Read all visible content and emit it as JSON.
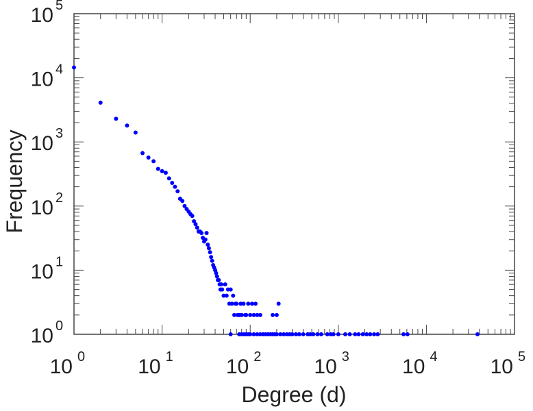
{
  "chart_data": {
    "type": "scatter",
    "title": "",
    "xlabel": "Degree (d)",
    "ylabel": "Frequency",
    "xscale": "log",
    "yscale": "log",
    "xlim": [
      1,
      100000
    ],
    "ylim": [
      1,
      100000
    ],
    "x_ticks": [
      {
        "base": "10",
        "exp": "0"
      },
      {
        "base": "10",
        "exp": "1"
      },
      {
        "base": "10",
        "exp": "2"
      },
      {
        "base": "10",
        "exp": "3"
      },
      {
        "base": "10",
        "exp": "4"
      },
      {
        "base": "10",
        "exp": "5"
      }
    ],
    "y_ticks": [
      {
        "base": "10",
        "exp": "0"
      },
      {
        "base": "10",
        "exp": "1"
      },
      {
        "base": "10",
        "exp": "2"
      },
      {
        "base": "10",
        "exp": "3"
      },
      {
        "base": "10",
        "exp": "4"
      },
      {
        "base": "10",
        "exp": "5"
      }
    ],
    "grid": false,
    "marker_color": "#0000ff",
    "points": [
      [
        1,
        14500
      ],
      [
        2,
        4100
      ],
      [
        3,
        2300
      ],
      [
        4,
        1800
      ],
      [
        5,
        1400
      ],
      [
        6,
        670
      ],
      [
        7,
        570
      ],
      [
        8,
        500
      ],
      [
        9,
        380
      ],
      [
        10,
        350
      ],
      [
        11,
        330
      ],
      [
        12,
        270
      ],
      [
        13,
        230
      ],
      [
        14,
        200
      ],
      [
        15,
        170
      ],
      [
        16,
        130
      ],
      [
        17,
        120
      ],
      [
        18,
        100
      ],
      [
        19,
        90
      ],
      [
        20,
        82
      ],
      [
        21,
        75
      ],
      [
        22,
        70
      ],
      [
        23,
        58
      ],
      [
        24,
        52
      ],
      [
        25,
        46
      ],
      [
        26,
        40
      ],
      [
        27,
        40
      ],
      [
        28,
        38
      ],
      [
        29,
        32
      ],
      [
        30,
        28
      ],
      [
        31,
        30
      ],
      [
        32,
        38
      ],
      [
        33,
        25
      ],
      [
        34,
        22
      ],
      [
        35,
        19
      ],
      [
        36,
        16
      ],
      [
        37,
        14
      ],
      [
        38,
        12
      ],
      [
        39,
        11
      ],
      [
        40,
        10
      ],
      [
        41,
        9
      ],
      [
        42,
        8
      ],
      [
        43,
        7
      ],
      [
        44,
        7
      ],
      [
        45,
        6
      ],
      [
        46,
        5
      ],
      [
        47,
        6
      ],
      [
        48,
        5
      ],
      [
        50,
        4
      ],
      [
        52,
        6
      ],
      [
        54,
        4
      ],
      [
        56,
        5
      ],
      [
        58,
        3
      ],
      [
        60,
        5
      ],
      [
        62,
        3
      ],
      [
        64,
        4
      ],
      [
        66,
        2
      ],
      [
        68,
        3
      ],
      [
        70,
        3
      ],
      [
        72,
        2
      ],
      [
        74,
        2
      ],
      [
        76,
        2
      ],
      [
        78,
        3
      ],
      [
        80,
        2
      ],
      [
        84,
        3
      ],
      [
        88,
        2
      ],
      [
        90,
        2
      ],
      [
        95,
        3
      ],
      [
        100,
        2
      ],
      [
        105,
        3
      ],
      [
        110,
        2
      ],
      [
        115,
        3
      ],
      [
        120,
        2
      ],
      [
        130,
        2
      ],
      [
        180,
        2
      ],
      [
        200,
        2
      ],
      [
        210,
        3
      ],
      [
        60,
        1
      ],
      [
        75,
        1
      ],
      [
        80,
        1
      ],
      [
        85,
        1
      ],
      [
        90,
        1
      ],
      [
        95,
        1
      ],
      [
        100,
        1
      ],
      [
        110,
        1
      ],
      [
        120,
        1
      ],
      [
        130,
        1
      ],
      [
        140,
        1
      ],
      [
        150,
        1
      ],
      [
        160,
        1
      ],
      [
        170,
        1
      ],
      [
        180,
        1
      ],
      [
        190,
        1
      ],
      [
        200,
        1
      ],
      [
        220,
        1
      ],
      [
        240,
        1
      ],
      [
        260,
        1
      ],
      [
        280,
        1
      ],
      [
        300,
        1
      ],
      [
        330,
        1
      ],
      [
        360,
        1
      ],
      [
        400,
        1
      ],
      [
        450,
        1
      ],
      [
        480,
        1
      ],
      [
        520,
        1
      ],
      [
        580,
        1
      ],
      [
        640,
        1
      ],
      [
        750,
        1
      ],
      [
        820,
        1
      ],
      [
        880,
        1
      ],
      [
        1000,
        1
      ],
      [
        1200,
        1
      ],
      [
        1350,
        1
      ],
      [
        1550,
        1
      ],
      [
        1700,
        1
      ],
      [
        1900,
        1
      ],
      [
        2100,
        1
      ],
      [
        2300,
        1
      ],
      [
        2550,
        1
      ],
      [
        2800,
        1
      ],
      [
        5500,
        1
      ],
      [
        6100,
        1
      ],
      [
        38000,
        1
      ]
    ]
  }
}
